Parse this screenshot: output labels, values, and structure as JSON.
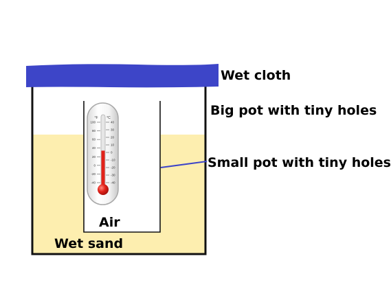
{
  "labels": {
    "wet_cloth": "Wet cloth",
    "big_pot": "Big pot with tiny holes",
    "small_pot": "Small pot with tiny holes",
    "air": "Air",
    "wet_sand": "Wet sand"
  },
  "thermometer": {
    "left_unit": "°F",
    "right_unit": "°C",
    "fahrenheit_ticks": [
      "100",
      "80",
      "60",
      "40",
      "20",
      "0",
      "-20",
      "-40"
    ],
    "celsius_ticks": [
      "40",
      "30",
      "20",
      "10",
      "0",
      "-10",
      "-20",
      "-30",
      "-40"
    ],
    "mercury_fraction": 0.52
  },
  "colors": {
    "cloth": "#3d45c8",
    "sand": "#fdeeaf",
    "mercury": "#e2231a",
    "pointer_line": "#3d45c8"
  }
}
